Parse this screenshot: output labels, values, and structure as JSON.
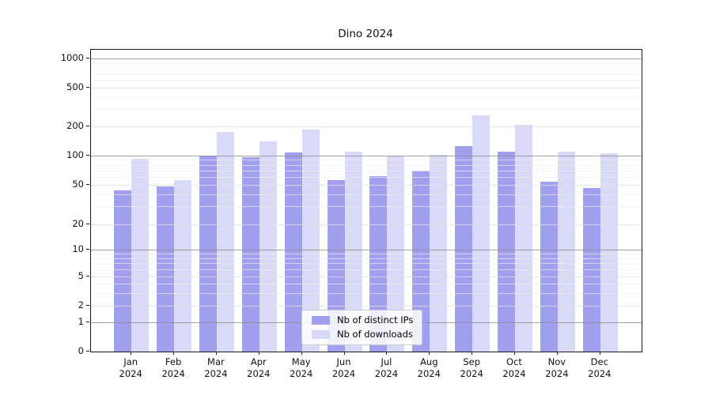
{
  "title": "Dino 2024",
  "legend": {
    "items": [
      {
        "label": "Nb of distinct IPs"
      },
      {
        "label": "Nb of downloads"
      }
    ]
  },
  "y_axis": {
    "tick_labels": [
      "0",
      "1",
      "2",
      "5",
      "10",
      "20",
      "50",
      "100",
      "200",
      "500",
      "1000"
    ]
  },
  "x_axis": {
    "months": [
      "Jan",
      "Feb",
      "Mar",
      "Apr",
      "May",
      "Jun",
      "Jul",
      "Aug",
      "Sep",
      "Oct",
      "Nov",
      "Dec"
    ],
    "year": "2024"
  },
  "colors": {
    "distinct_ips": "#a0a0ee",
    "downloads": "#d9d9f8",
    "grid_pow10": "rgba(140,140,140,0.80)",
    "grid_major": "rgba(224,224,224,0.80)",
    "grid_minor": "rgba(240,240,240,0.65)",
    "spine": "#1a1a1a"
  },
  "chart_data": {
    "type": "bar",
    "title": "Dino 2024",
    "categories": [
      "Jan 2024",
      "Feb 2024",
      "Mar 2024",
      "Apr 2024",
      "May 2024",
      "Jun 2024",
      "Jul 2024",
      "Aug 2024",
      "Sep 2024",
      "Oct 2024",
      "Nov 2024",
      "Dec 2024"
    ],
    "series": [
      {
        "name": "Nb of distinct IPs",
        "values": [
          44,
          48,
          99,
          96,
          107,
          56,
          61,
          70,
          126,
          110,
          53,
          46
        ]
      },
      {
        "name": "Nb of downloads",
        "values": [
          92,
          56,
          176,
          139,
          186,
          110,
          100,
          101,
          260,
          208,
          109,
          105
        ]
      }
    ],
    "yscale": "symlog",
    "y_ticks": [
      0,
      1,
      2,
      5,
      10,
      20,
      50,
      100,
      200,
      500,
      1000
    ],
    "ylim": [
      0,
      1250
    ],
    "grid": true,
    "legend_position": "lower center"
  }
}
